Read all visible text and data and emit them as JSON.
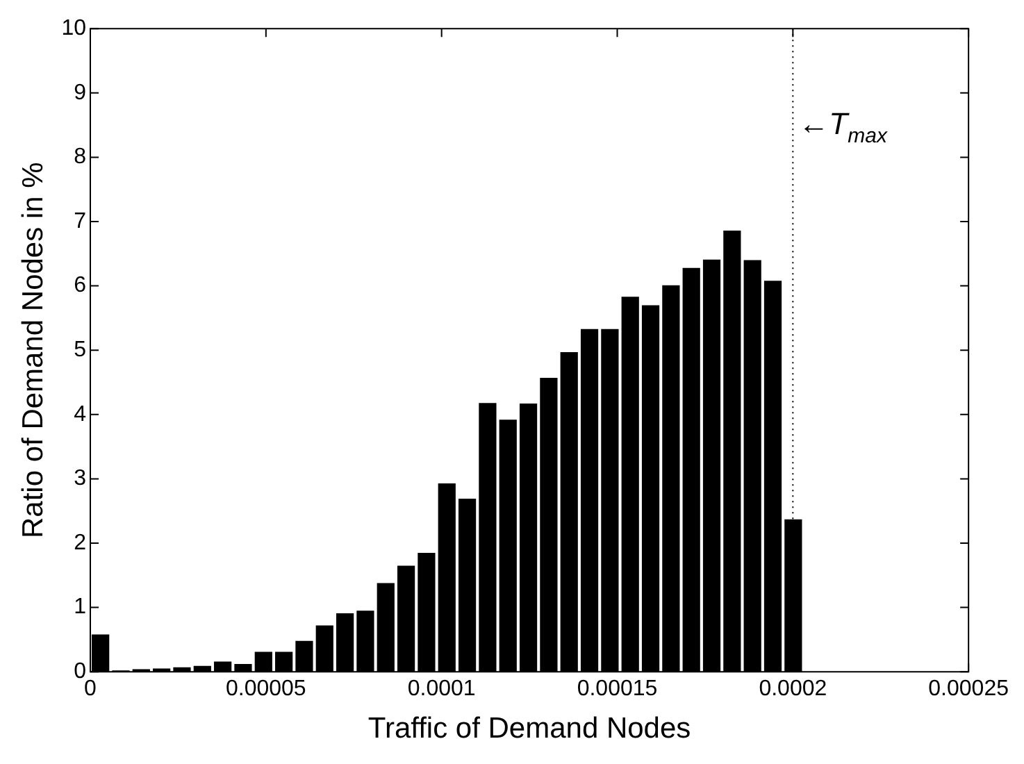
{
  "chart_data": {
    "type": "histogram",
    "xlabel": "Traffic of Demand Nodes",
    "ylabel": "Ratio of Demand Nodes in %",
    "bins": [
      0,
      5.8e-06,
      1.16e-05,
      1.74e-05,
      2.32e-05,
      2.9e-05,
      3.48e-05,
      4.06e-05,
      4.64e-05,
      5.22e-05,
      5.8e-05,
      6.38e-05,
      6.96e-05,
      7.54e-05,
      8.12e-05,
      8.7e-05,
      9.28e-05,
      9.86e-05,
      0.0001044,
      0.0001102,
      0.000116,
      0.0001218,
      0.0001276,
      0.0001334,
      0.0001392,
      0.000145,
      0.0001508,
      0.0001566,
      0.0001624,
      0.0001682,
      0.000174,
      0.0001798,
      0.0001856,
      0.0001914,
      0.0001972,
      0.000203
    ],
    "values": [
      0.58,
      0.02,
      0.04,
      0.05,
      0.07,
      0.09,
      0.16,
      0.12,
      0.31,
      0.31,
      0.48,
      0.72,
      0.91,
      0.95,
      1.38,
      1.65,
      1.85,
      2.93,
      2.69,
      4.18,
      3.92,
      4.17,
      4.57,
      4.97,
      5.33,
      5.33,
      5.83,
      5.7,
      6.01,
      6.28,
      6.41,
      6.86,
      6.4,
      6.08,
      2.37
    ],
    "color": "#000000",
    "xlim": [
      0,
      0.00025
    ],
    "xticks": [
      0,
      {
        "value": 5e-05,
        "label": "0.00005"
      },
      0.0001,
      0.00015,
      0.0002,
      0.00025
    ],
    "ylim": [
      0,
      10
    ],
    "yticks": [
      0,
      1,
      2,
      3,
      4,
      5,
      6,
      7,
      8,
      9,
      10
    ],
    "ref_lines": [
      {
        "axis": "x",
        "value": 0.0002,
        "label": "←T$_{max}$",
        "line_style": "dotted",
        "color": "#000000"
      }
    ],
    "grid": false,
    "legend": false
  }
}
